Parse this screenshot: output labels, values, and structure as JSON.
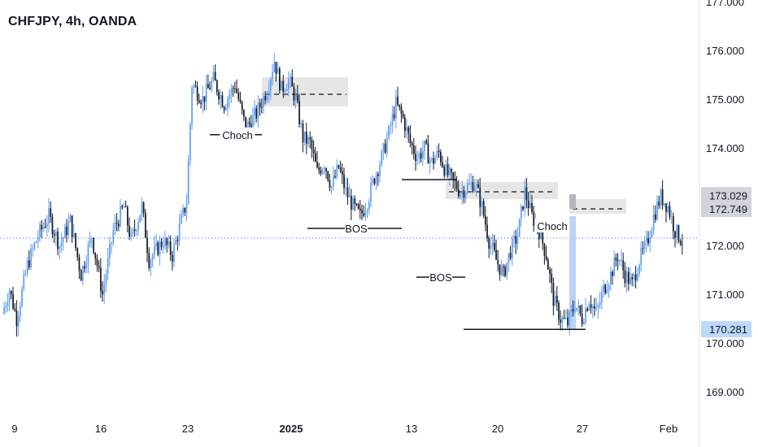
{
  "header": {
    "title": "CHFJPY, 4h, OANDA"
  },
  "colors": {
    "up": "#5b9cf6",
    "down": "#131722",
    "zone": "#e0e0e0",
    "current_line": "#2962ff",
    "projection": "#bbd3f5",
    "price_box": "#d1d4dc",
    "price_box_blue": "#bbd9fb"
  },
  "chart_data": {
    "type": "candlestick",
    "ylim": [
      168.6,
      177.1
    ],
    "y_ticks": [
      {
        "value": 177.0,
        "label": "177.000"
      },
      {
        "value": 176.0,
        "label": "176.000"
      },
      {
        "value": 175.0,
        "label": "175.000"
      },
      {
        "value": 174.0,
        "label": "174.000"
      },
      {
        "value": 172.0,
        "label": "172.000"
      },
      {
        "value": 171.0,
        "label": "171.000"
      },
      {
        "value": 170.0,
        "label": "170.000"
      },
      {
        "value": 169.0,
        "label": "169.000"
      }
    ],
    "x_ticks": [
      {
        "label": "9",
        "bold": false
      },
      {
        "label": "16",
        "bold": false
      },
      {
        "label": "23",
        "bold": false
      },
      {
        "label": "2025",
        "bold": true
      },
      {
        "label": "13",
        "bold": false
      },
      {
        "label": "20",
        "bold": false
      },
      {
        "label": "27",
        "bold": false
      },
      {
        "label": "Feb",
        "bold": false
      }
    ],
    "price_levels": [
      {
        "value": 173.029,
        "label": "173.029",
        "style": "gray"
      },
      {
        "value": 172.749,
        "label": "172.749",
        "style": "gray"
      },
      {
        "value": 170.281,
        "label": "170.281",
        "style": "blue"
      }
    ],
    "current_price": 172.15,
    "annotations": [
      {
        "text": "Choch"
      },
      {
        "text": "BOS"
      },
      {
        "text": "BOS"
      },
      {
        "text": "Choch"
      }
    ],
    "waypoints": [
      [
        0,
        170.6
      ],
      [
        4,
        171.1
      ],
      [
        8,
        170.5
      ],
      [
        14,
        171.6
      ],
      [
        20,
        172.2
      ],
      [
        26,
        172.6
      ],
      [
        32,
        172.0
      ],
      [
        38,
        172.5
      ],
      [
        44,
        171.4
      ],
      [
        50,
        172.2
      ],
      [
        56,
        171.0
      ],
      [
        62,
        172.3
      ],
      [
        68,
        172.8
      ],
      [
        72,
        172.1
      ],
      [
        78,
        172.8
      ],
      [
        82,
        171.7
      ],
      [
        90,
        172.1
      ],
      [
        95,
        171.8
      ],
      [
        100,
        172.5
      ],
      [
        103,
        172.9
      ],
      [
        106,
        175.3
      ],
      [
        112,
        175.0
      ],
      [
        118,
        175.4
      ],
      [
        124,
        174.9
      ],
      [
        130,
        175.3
      ],
      [
        136,
        174.4
      ],
      [
        142,
        174.7
      ],
      [
        148,
        175.2
      ],
      [
        152,
        175.8
      ],
      [
        156,
        175.2
      ],
      [
        160,
        175.4
      ],
      [
        164,
        175.0
      ],
      [
        168,
        174.2
      ],
      [
        172,
        174.1
      ],
      [
        176,
        173.5
      ],
      [
        180,
        173.7
      ],
      [
        184,
        173.2
      ],
      [
        188,
        173.6
      ],
      [
        192,
        173.1
      ],
      [
        196,
        172.8
      ],
      [
        200,
        172.6
      ],
      [
        204,
        172.9
      ],
      [
        208,
        173.4
      ],
      [
        212,
        173.8
      ],
      [
        216,
        174.3
      ],
      [
        220,
        174.9
      ],
      [
        224,
        174.6
      ],
      [
        228,
        174.1
      ],
      [
        232,
        173.8
      ],
      [
        236,
        174.0
      ],
      [
        240,
        173.7
      ],
      [
        244,
        173.9
      ],
      [
        248,
        173.5
      ],
      [
        252,
        173.3
      ],
      [
        256,
        173.1
      ],
      [
        260,
        173.2
      ],
      [
        264,
        173.3
      ],
      [
        268,
        172.8
      ],
      [
        272,
        172.1
      ],
      [
        276,
        171.7
      ],
      [
        280,
        171.4
      ],
      [
        284,
        171.9
      ],
      [
        288,
        172.2
      ],
      [
        292,
        173.1
      ],
      [
        296,
        172.6
      ],
      [
        300,
        172.3
      ],
      [
        304,
        171.8
      ],
      [
        308,
        170.9
      ],
      [
        312,
        170.5
      ],
      [
        316,
        170.4
      ],
      [
        320,
        170.8
      ],
      [
        324,
        170.5
      ],
      [
        328,
        170.9
      ],
      [
        332,
        170.6
      ],
      [
        336,
        171.1
      ],
      [
        340,
        171.4
      ],
      [
        344,
        171.8
      ],
      [
        348,
        171.4
      ],
      [
        352,
        171.2
      ],
      [
        356,
        171.7
      ],
      [
        360,
        172.0
      ],
      [
        364,
        172.6
      ],
      [
        368,
        173.0
      ],
      [
        372,
        172.8
      ],
      [
        376,
        172.3
      ],
      [
        380,
        172.1
      ]
    ]
  }
}
